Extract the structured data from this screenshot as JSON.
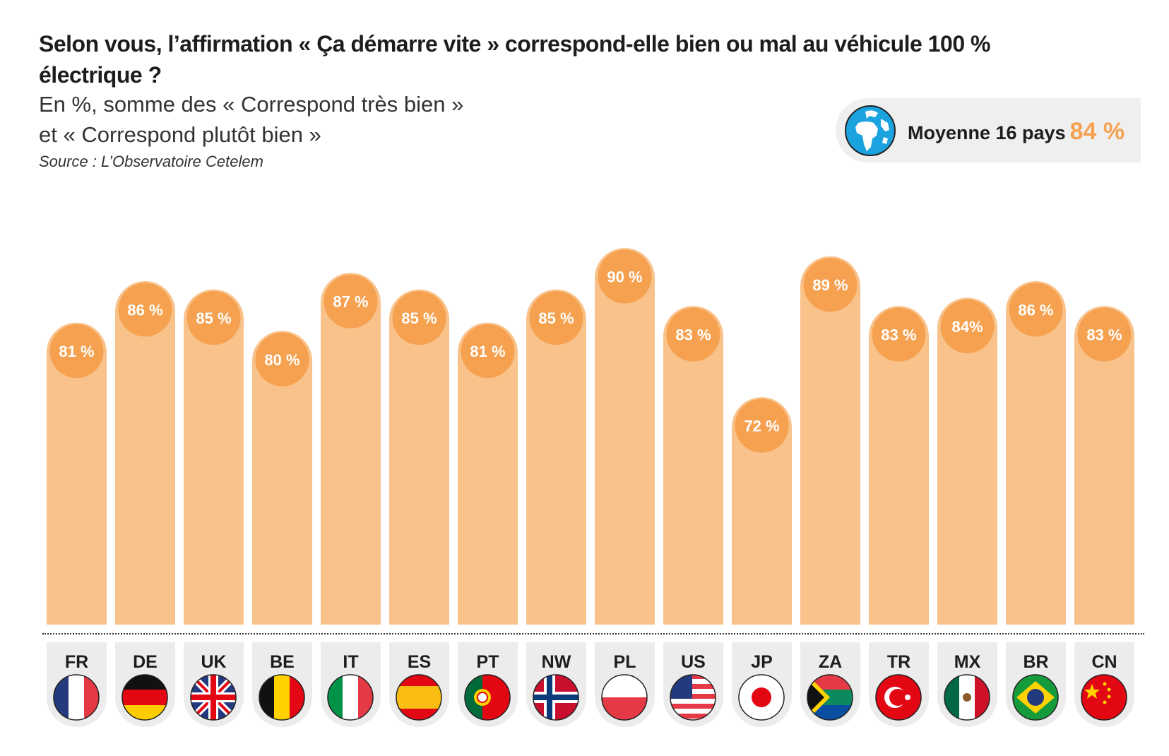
{
  "header": {
    "title": "Selon vous, l’affirmation « Ça démarre vite » correspond-elle bien ou mal au véhicule 100 % électrique ?",
    "subtitle_line1": "En %, somme des « Correspond très bien »",
    "subtitle_line2": "et « Correspond plutôt bien »",
    "source": "Source : L’Observatoire Cetelem"
  },
  "average": {
    "label": "Moyenne 16 pays",
    "value": "84 %",
    "icon": "globe-icon"
  },
  "colors": {
    "bar": "#F9C28A",
    "bubble": "#F5A150",
    "accent": "#F5A150"
  },
  "chart_data": {
    "type": "bar",
    "title": "Selon vous, l’affirmation « Ça démarre vite » correspond-elle bien ou mal au véhicule 100 % électrique ?",
    "ylabel": "%",
    "categories": [
      "FR",
      "DE",
      "UK",
      "BE",
      "IT",
      "ES",
      "PT",
      "NW",
      "PL",
      "US",
      "JP",
      "ZA",
      "TR",
      "MX",
      "BR",
      "CN"
    ],
    "values": [
      81,
      86,
      85,
      80,
      87,
      85,
      81,
      85,
      90,
      83,
      72,
      89,
      83,
      84,
      86,
      83
    ],
    "labels": [
      "81 %",
      "86 %",
      "85 %",
      "80 %",
      "87 %",
      "85 %",
      "81 %",
      "85 %",
      "90 %",
      "83 %",
      "72 %",
      "89 %",
      "83 %",
      "84%",
      "86 %",
      "83 %"
    ],
    "grid": false
  }
}
